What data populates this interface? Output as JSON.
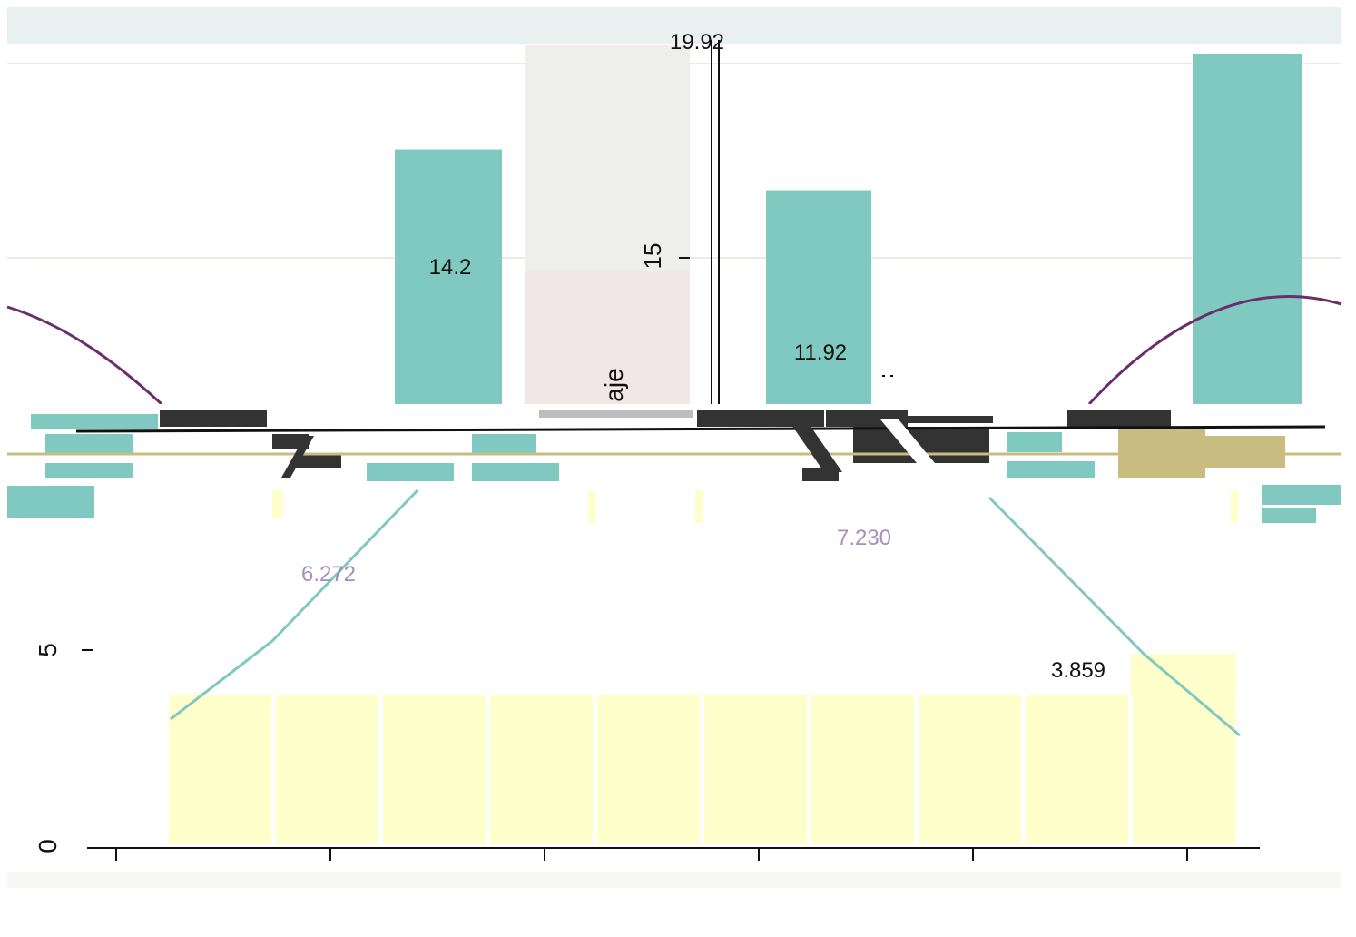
{
  "colors": {
    "panel_bg": "#e8f0f0",
    "teal_bar": "#7fc9c0",
    "purple_line": "#6b2d6b",
    "cream_bar": "#ffffcc",
    "teal_line": "#7fc9c0",
    "pink_bar": "#f2e6e6",
    "grey_bar": "#eeeeea",
    "olive": "#c8bc80"
  },
  "chart_data": [
    {
      "type": "bar",
      "categories": [
        "",
        "",
        "",
        "",
        "",
        "",
        "",
        "",
        "",
        "",
        ""
      ],
      "values": [
        null,
        null,
        null,
        14.2,
        19.92,
        null,
        11.92,
        null,
        null,
        null,
        19.5
      ],
      "data_labels": {
        "bar_a": "14.2",
        "bar_b": "19.92",
        "bar_c": "11.92"
      },
      "axis_fragments": {
        "y_tick_top": "15",
        "y_label_fragment": "aje"
      },
      "ylim": [
        0,
        20
      ],
      "grid": true
    },
    {
      "type": "bar",
      "categories": [
        "",
        "",
        "",
        "",
        "",
        "",
        "",
        "",
        "",
        ""
      ],
      "values": [
        3.859,
        3.859,
        3.859,
        3.859,
        3.859,
        3.859,
        3.859,
        3.859,
        3.859,
        3.859
      ],
      "line_series": {
        "name": "",
        "x": [
          0,
          1,
          2,
          3,
          4,
          5,
          6,
          7,
          8,
          9
        ],
        "y": [
          3.4,
          5.2,
          6.27,
          7.0,
          7.23,
          7.23,
          7.0,
          6.0,
          4.5,
          2.8
        ]
      },
      "data_labels": {
        "label_a": "6.272",
        "label_b": "7.230",
        "label_c": "3.859"
      },
      "y_ticks": [
        "0",
        "5"
      ],
      "ylim": [
        0,
        8.5
      ],
      "grid": false
    }
  ]
}
